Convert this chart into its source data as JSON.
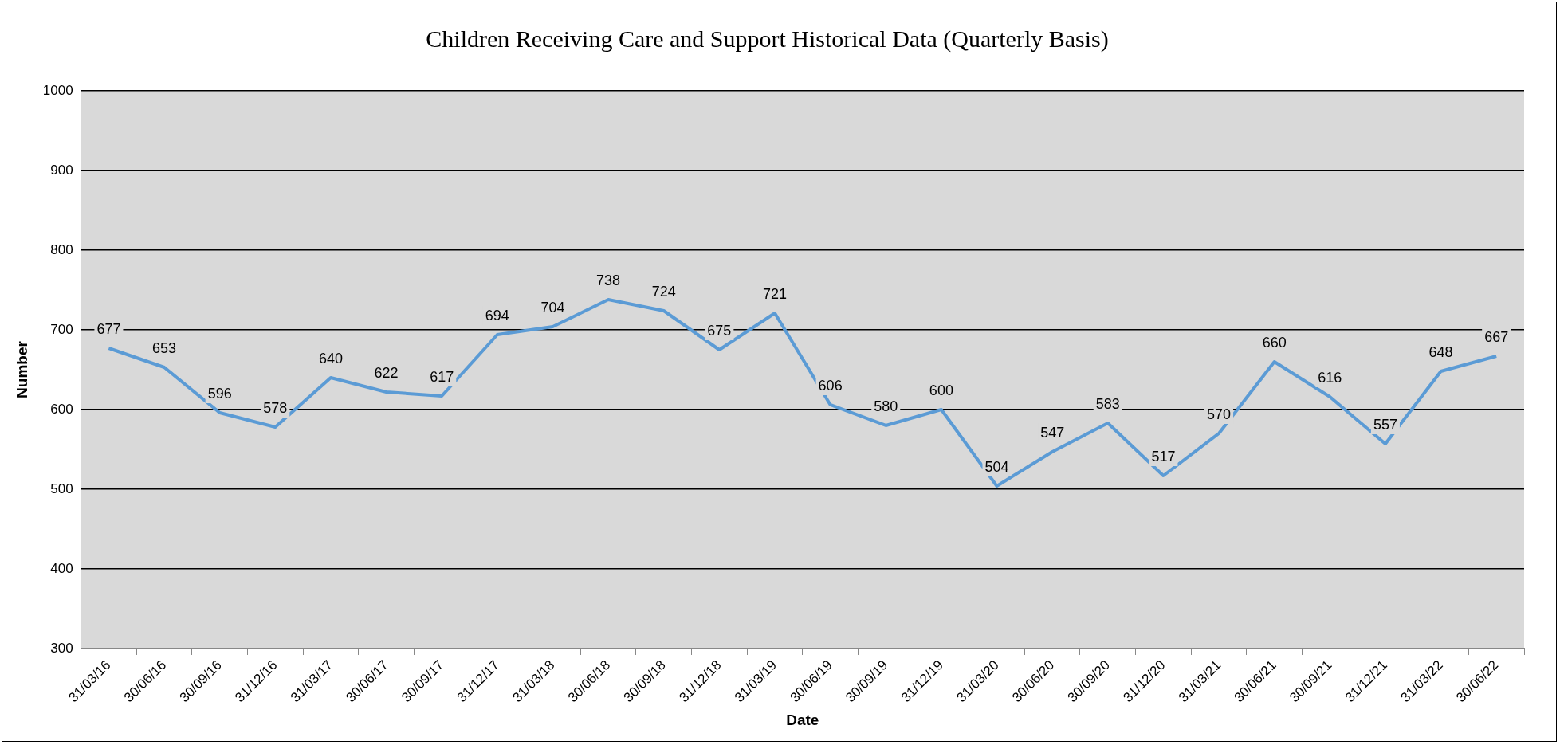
{
  "chart_data": {
    "type": "line",
    "title": "Children Receiving Care and Support Historical Data (Quarterly Basis)",
    "xlabel": "Date",
    "ylabel": "Number",
    "categories": [
      "31/03/16",
      "30/06/16",
      "30/09/16",
      "31/12/16",
      "31/03/17",
      "30/06/17",
      "30/09/17",
      "31/12/17",
      "31/03/18",
      "30/06/18",
      "30/09/18",
      "31/12/18",
      "31/03/19",
      "30/06/19",
      "30/09/19",
      "31/12/19",
      "31/03/20",
      "30/06/20",
      "30/09/20",
      "31/12/20",
      "31/03/21",
      "30/06/21",
      "30/09/21",
      "31/12/21",
      "31/03/22",
      "30/06/22"
    ],
    "series": [
      {
        "color": "#5b9bd5",
        "values": [
          677,
          653,
          596,
          578,
          640,
          622,
          617,
          694,
          704,
          738,
          724,
          675,
          721,
          606,
          580,
          600,
          504,
          547,
          583,
          517,
          570,
          660,
          616,
          557,
          648,
          667
        ]
      }
    ],
    "ylim": [
      300,
      1000
    ],
    "yticks": [
      300,
      400,
      500,
      600,
      700,
      800,
      900,
      1000
    ],
    "grid": "y",
    "legend": false,
    "marker": "none",
    "line_style": "solid",
    "data_labels": true
  }
}
